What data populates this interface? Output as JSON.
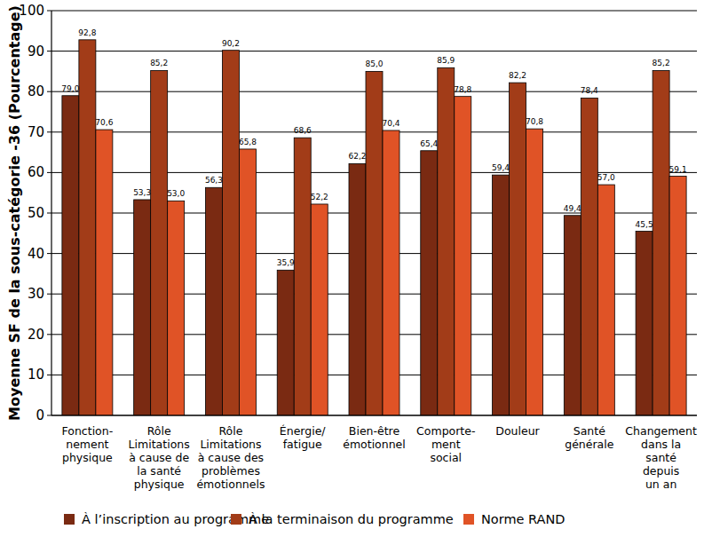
{
  "chart_data": {
    "type": "bar",
    "y_label": "Moyenne SF de la sous-catégorie -36 (Pourcentage)",
    "categories": [
      "Fonction-\nnement\nphysique",
      "Rôle\nLimitations\nà cause de\nla santé\nphysique",
      "Rôle\nLimitations\nà cause des\nproblèmes\némotionnels",
      "Énergie/\nfatigue",
      "Bien-être\némotionnel",
      "Comporte-\nment\nsocial",
      "Douleur",
      "Santé\ngénérale",
      "Changement\ndans la\nsanté\ndepuis\nun an"
    ],
    "series": [
      {
        "name": "À l’inscription au programme",
        "color": "#7a2a12",
        "values": [
          79.0,
          53.3,
          56.3,
          35.9,
          62.2,
          65.4,
          59.4,
          49.4,
          45.5
        ],
        "value_labels": [
          "79,0",
          "53,3",
          "56,3",
          "35,9",
          "62,2",
          "65,4",
          "59,4",
          "49,4",
          "45,5"
        ]
      },
      {
        "name": "À la terminaison du programme",
        "color": "#a23c18",
        "values": [
          92.8,
          85.2,
          90.2,
          68.6,
          85.0,
          85.9,
          82.2,
          78.4,
          85.2
        ],
        "value_labels": [
          "92,8",
          "85,2",
          "90,2",
          "68,6",
          "85,0",
          "85,9",
          "82,2",
          "78,4",
          "85,2"
        ]
      },
      {
        "name": "Norme RAND",
        "color": "#e05326",
        "values": [
          70.6,
          53.0,
          65.8,
          52.2,
          70.4,
          78.8,
          70.8,
          57.0,
          59.1
        ],
        "value_labels": [
          "70,6",
          "53,0",
          "65,8",
          "52,2",
          "70,4",
          "78,8",
          "70,8",
          "57,0",
          "59,1"
        ]
      }
    ],
    "ylim": [
      0,
      100
    ],
    "yticks": [
      0,
      10,
      20,
      30,
      40,
      50,
      60,
      70,
      80,
      90,
      100
    ],
    "grid": true,
    "data_labels": true,
    "legend": "bottom"
  }
}
